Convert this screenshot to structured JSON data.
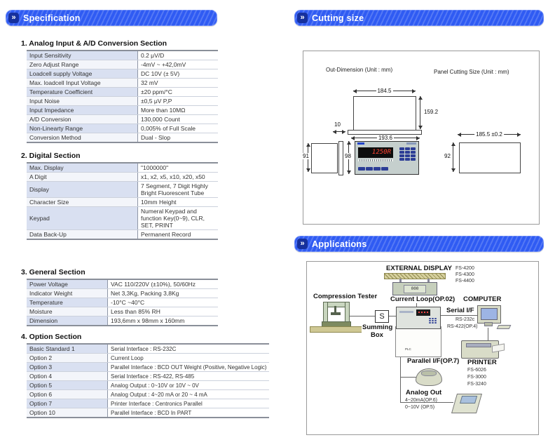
{
  "spec": {
    "header": "Specification",
    "sections": [
      {
        "title": "1. Analog Input & A/D Conversion Section",
        "rows": [
          [
            "Input Sensitivity",
            "0.2 μV/D"
          ],
          [
            "Zero Adjust Range",
            "-4mV ~ +42,0mV"
          ],
          [
            "Loadcell supply Voltage",
            "DC 10V (± 5V)"
          ],
          [
            "Max. loadcell Input Voltage",
            "32 mV"
          ],
          [
            "Temperature Coefficient",
            "±20 ppm/°C"
          ],
          [
            "Input Noise",
            "±0,5 μV P,P"
          ],
          [
            "Input Impedance",
            "More than 10MΩ"
          ],
          [
            "A/D Conversion",
            "130,000 Count"
          ],
          [
            "Non-Linearty Range",
            "0,005% of Full Scale"
          ],
          [
            "Conversion Method",
            "Dual - Slop"
          ]
        ]
      },
      {
        "title": "2. Digital Section",
        "rows": [
          [
            "Max. Display",
            "\"1000000\""
          ],
          [
            "A Digit",
            "x1, x2, x5, x10, x20, x50"
          ],
          [
            "Display",
            "7 Segment, 7 Digit Highly Bright Fluorescent Tube"
          ],
          [
            "Character Size",
            "10mm Height"
          ],
          [
            "Keypad",
            "Numeral Keypad and function Key(0~9), CLR, SET, PRINT"
          ],
          [
            "Data Back-Up",
            "Permanent Record"
          ]
        ]
      },
      {
        "title": "3. General Section",
        "rows": [
          [
            "Power Voltage",
            "VAC 110/220V (±10%), 50/60Hz"
          ],
          [
            "Indicator Weight",
            "Net 3,3Kg, Packing 3,8Kg"
          ],
          [
            "Temperature",
            "-10°C ~40°C"
          ],
          [
            "Moisture",
            "Less than 85% RH"
          ],
          [
            "Dimension",
            "193,6mm x 98mm x 160mm"
          ]
        ]
      },
      {
        "title": "4. Option Section",
        "rows": [
          [
            "Basic Standard 1",
            "Serial Interface : RS-232C"
          ],
          [
            "Option 2",
            "Current Loop"
          ],
          [
            "Option 3",
            "Parallel Interface : BCD OUT Weight (Positive, Negative Logic)"
          ],
          [
            "Option 4",
            "Serial Interface : RS-422, RS-485"
          ],
          [
            "Option 5",
            "Analog Output : 0~10V or 10V ~ 0V"
          ],
          [
            "Option 6",
            "Analog Output : 4~20 mA or 20 ~ 4 mA"
          ],
          [
            "Option 7",
            "Printer Interface : Centronics Parallel"
          ],
          [
            "Option 10",
            "Parallel Interface : BCD In PART"
          ]
        ]
      }
    ]
  },
  "cutting": {
    "header": "Cutting size",
    "out_label": "Out-Dimension (Unit : mm)",
    "panel_label": "Panel Cutting Size (Unit : mm)",
    "dims": {
      "top_width": "184.5",
      "body_height": "159.2",
      "flange_offset": "10",
      "front_width": "193.6",
      "side_depth": "91",
      "front_height": "98",
      "cut_width": "185.5 ±0.2",
      "cut_height": "92"
    },
    "display_value": "1250R"
  },
  "apps": {
    "header": "Applications",
    "external_display": "EXTERNAL DISPLAY",
    "external_models": [
      "FS-4200",
      "FS-4300",
      "FS-4400"
    ],
    "external_value": "000",
    "compression_tester": "Compression Tester",
    "current_loop": "Current Loop(OP.02)",
    "summing_initial": "S",
    "summing_box": "Summing Box",
    "computer": "COMPUTER",
    "serial_if": "Serial I/F",
    "rs232": "RS-232c",
    "rs422": "RS-422(OP.4)",
    "parallel_if": "Parallel I/F(OP.7)",
    "printer": "PRINTER",
    "printer_models": [
      "FS-6026",
      "FS-3000",
      "FS-3240"
    ],
    "analog_out": "Analog Out",
    "analog_ma": "4~20mA(OP.6)",
    "analog_v": "0~10V (OP.5)",
    "plc": "PLC"
  },
  "colors": {
    "header_blue": "#2f5bf3",
    "header_icon_blue": "#16309d",
    "row_tint": "#d9e0f1",
    "display_red": "#ff4433"
  }
}
